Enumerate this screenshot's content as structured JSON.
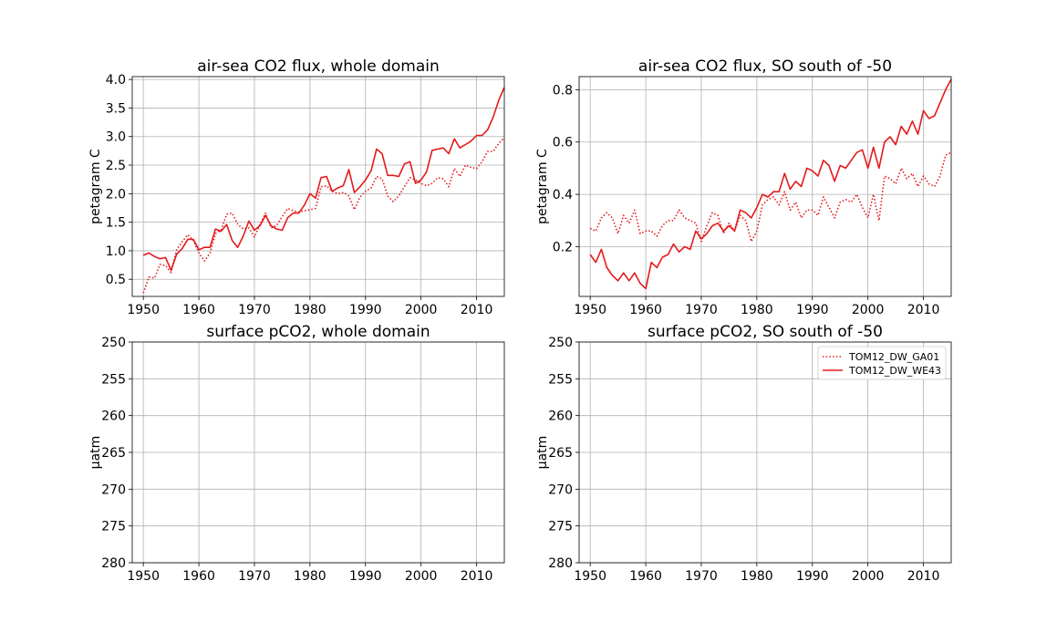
{
  "colors": {
    "series": "#e41a1c"
  },
  "chart_data": [
    {
      "type": "line",
      "title": "air-sea CO2 flux, whole domain",
      "ylabel": "petagram C",
      "xlim": [
        1948,
        2015
      ],
      "ylim": [
        0.2,
        4.05
      ],
      "xticks": [
        1950,
        1960,
        1970,
        1980,
        1990,
        2000,
        2010
      ],
      "yticks": [
        0.5,
        1.0,
        1.5,
        2.0,
        2.5,
        3.0,
        3.5,
        4.0
      ],
      "ytick_labels": [
        "0.5",
        "1.0",
        "1.5",
        "2.0",
        "2.5",
        "3.0",
        "3.5",
        "4.0"
      ],
      "grid": true,
      "x": [
        1950,
        1951,
        1952,
        1953,
        1954,
        1955,
        1956,
        1957,
        1958,
        1959,
        1960,
        1961,
        1962,
        1963,
        1964,
        1965,
        1966,
        1967,
        1968,
        1969,
        1970,
        1971,
        1972,
        1973,
        1974,
        1975,
        1976,
        1977,
        1978,
        1979,
        1980,
        1981,
        1982,
        1983,
        1984,
        1985,
        1986,
        1987,
        1988,
        1989,
        1990,
        1991,
        1992,
        1993,
        1994,
        1995,
        1996,
        1997,
        1998,
        1999,
        2000,
        2001,
        2002,
        2003,
        2004,
        2005,
        2006,
        2007,
        2008,
        2009,
        2010,
        2011,
        2012,
        2013,
        2014,
        2015
      ],
      "series": [
        {
          "name": "TOM12_DW_GA01",
          "style": "dotted",
          "values": [
            0.26,
            0.54,
            0.52,
            0.76,
            0.74,
            0.62,
            1.02,
            1.16,
            1.28,
            1.18,
            0.96,
            0.82,
            0.96,
            1.3,
            1.36,
            1.64,
            1.66,
            1.46,
            1.38,
            1.4,
            1.24,
            1.46,
            1.66,
            1.4,
            1.44,
            1.6,
            1.74,
            1.7,
            1.68,
            1.7,
            1.72,
            1.74,
            2.12,
            2.14,
            2.04,
            2.0,
            2.02,
            1.96,
            1.72,
            1.94,
            2.04,
            2.1,
            2.3,
            2.26,
            1.96,
            1.86,
            1.96,
            2.12,
            2.28,
            2.24,
            2.18,
            2.14,
            2.18,
            2.28,
            2.26,
            2.12,
            2.44,
            2.3,
            2.5,
            2.46,
            2.44,
            2.56,
            2.74,
            2.74,
            2.88,
            2.98
          ]
        },
        {
          "name": "TOM12_DW_WE43",
          "style": "solid",
          "values": [
            0.92,
            0.96,
            0.9,
            0.86,
            0.88,
            0.66,
            0.94,
            1.04,
            1.2,
            1.2,
            1.02,
            1.06,
            1.06,
            1.38,
            1.34,
            1.46,
            1.18,
            1.06,
            1.26,
            1.52,
            1.36,
            1.44,
            1.62,
            1.44,
            1.38,
            1.36,
            1.58,
            1.66,
            1.66,
            1.8,
            2.0,
            1.92,
            2.28,
            2.3,
            2.04,
            2.1,
            2.14,
            2.42,
            2.02,
            2.12,
            2.24,
            2.4,
            2.78,
            2.7,
            2.32,
            2.32,
            2.3,
            2.52,
            2.56,
            2.18,
            2.24,
            2.38,
            2.76,
            2.78,
            2.8,
            2.7,
            2.96,
            2.8,
            2.86,
            2.92,
            3.02,
            3.02,
            3.12,
            3.34,
            3.64,
            3.86
          ]
        }
      ]
    },
    {
      "type": "line",
      "title": "air-sea CO2 flux, SO south of -50",
      "ylabel": "petagram C",
      "xlim": [
        1948,
        2015
      ],
      "ylim": [
        0.01,
        0.85
      ],
      "xticks": [
        1950,
        1960,
        1970,
        1980,
        1990,
        2000,
        2010
      ],
      "yticks": [
        0.2,
        0.4,
        0.6,
        0.8
      ],
      "ytick_labels": [
        "0.2",
        "0.4",
        "0.6",
        "0.8"
      ],
      "grid": true,
      "x": [
        1950,
        1951,
        1952,
        1953,
        1954,
        1955,
        1956,
        1957,
        1958,
        1959,
        1960,
        1961,
        1962,
        1963,
        1964,
        1965,
        1966,
        1967,
        1968,
        1969,
        1970,
        1971,
        1972,
        1973,
        1974,
        1975,
        1976,
        1977,
        1978,
        1979,
        1980,
        1981,
        1982,
        1983,
        1984,
        1985,
        1986,
        1987,
        1988,
        1989,
        1990,
        1991,
        1992,
        1993,
        1994,
        1995,
        1996,
        1997,
        1998,
        1999,
        2000,
        2001,
        2002,
        2003,
        2004,
        2005,
        2006,
        2007,
        2008,
        2009,
        2010,
        2011,
        2012,
        2013,
        2014,
        2015
      ],
      "series": [
        {
          "name": "TOM12_DW_GA01",
          "style": "dotted",
          "values": [
            0.27,
            0.26,
            0.31,
            0.33,
            0.31,
            0.25,
            0.32,
            0.29,
            0.34,
            0.25,
            0.26,
            0.26,
            0.24,
            0.28,
            0.3,
            0.3,
            0.34,
            0.31,
            0.3,
            0.29,
            0.22,
            0.28,
            0.33,
            0.32,
            0.25,
            0.29,
            0.26,
            0.32,
            0.3,
            0.22,
            0.26,
            0.36,
            0.38,
            0.39,
            0.36,
            0.41,
            0.34,
            0.37,
            0.31,
            0.34,
            0.34,
            0.32,
            0.39,
            0.35,
            0.31,
            0.37,
            0.38,
            0.37,
            0.4,
            0.35,
            0.31,
            0.4,
            0.3,
            0.47,
            0.46,
            0.44,
            0.5,
            0.46,
            0.48,
            0.43,
            0.47,
            0.44,
            0.43,
            0.47,
            0.55,
            0.56
          ]
        },
        {
          "name": "TOM12_DW_WE43",
          "style": "solid",
          "values": [
            0.17,
            0.14,
            0.19,
            0.12,
            0.09,
            0.07,
            0.1,
            0.07,
            0.1,
            0.06,
            0.04,
            0.14,
            0.12,
            0.16,
            0.17,
            0.21,
            0.18,
            0.2,
            0.19,
            0.26,
            0.23,
            0.25,
            0.28,
            0.29,
            0.26,
            0.28,
            0.26,
            0.34,
            0.33,
            0.31,
            0.35,
            0.4,
            0.39,
            0.41,
            0.41,
            0.48,
            0.42,
            0.45,
            0.43,
            0.5,
            0.49,
            0.47,
            0.53,
            0.51,
            0.45,
            0.51,
            0.5,
            0.53,
            0.56,
            0.57,
            0.5,
            0.58,
            0.5,
            0.6,
            0.62,
            0.59,
            0.66,
            0.63,
            0.68,
            0.63,
            0.72,
            0.69,
            0.7,
            0.75,
            0.8,
            0.84
          ]
        }
      ]
    },
    {
      "type": "line",
      "title": "surface pCO2, whole domain",
      "ylabel": "μatm",
      "xlim": [
        1948,
        2015
      ],
      "ylim": [
        250,
        280
      ],
      "inverted_y": true,
      "xticks": [
        1950,
        1960,
        1970,
        1980,
        1990,
        2000,
        2010
      ],
      "yticks": [
        250,
        255,
        260,
        265,
        270,
        275,
        280
      ],
      "ytick_labels": [
        "250",
        "255",
        "260",
        "265",
        "270",
        "275",
        "280"
      ],
      "grid": true,
      "series": []
    },
    {
      "type": "line",
      "title": "surface pCO2, SO south of -50",
      "ylabel": "μatm",
      "xlim": [
        1948,
        2015
      ],
      "ylim": [
        250,
        280
      ],
      "inverted_y": true,
      "xticks": [
        1950,
        1960,
        1970,
        1980,
        1990,
        2000,
        2010
      ],
      "yticks": [
        250,
        255,
        260,
        265,
        270,
        275,
        280
      ],
      "ytick_labels": [
        "250",
        "255",
        "260",
        "265",
        "270",
        "275",
        "280"
      ],
      "grid": true,
      "legend": {
        "placement": "top-right",
        "entries": [
          {
            "name": "TOM12_DW_GA01",
            "style": "dotted"
          },
          {
            "name": "TOM12_DW_WE43",
            "style": "solid"
          }
        ]
      },
      "series": []
    }
  ]
}
